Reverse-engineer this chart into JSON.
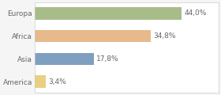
{
  "categories": [
    "Europa",
    "Africa",
    "Asia",
    "America"
  ],
  "values": [
    44.0,
    34.8,
    17.8,
    3.4
  ],
  "labels": [
    "44,0%",
    "34,8%",
    "17,8%",
    "3,4%"
  ],
  "bar_colors": [
    "#a8bc8a",
    "#e8b98a",
    "#7f9fc0",
    "#e8d080"
  ],
  "background_color": "#f5f5f5",
  "plot_bg_color": "#ffffff",
  "text_color": "#666666",
  "label_fontsize": 6.5,
  "tick_fontsize": 6.5,
  "xlim": [
    0,
    55
  ],
  "bar_height": 0.55
}
